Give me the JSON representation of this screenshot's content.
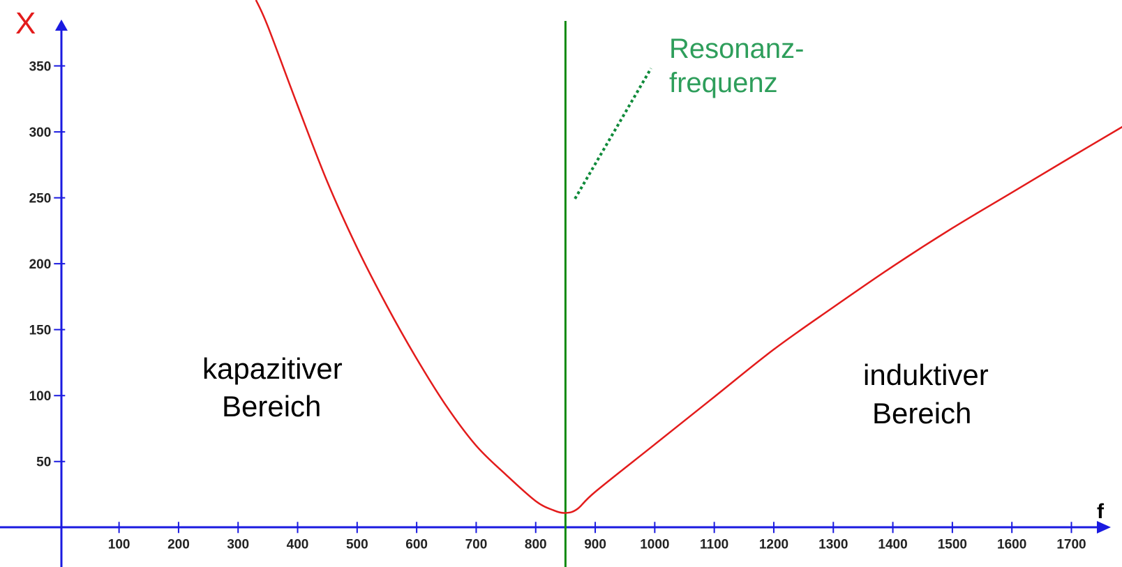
{
  "chart_data": {
    "type": "line",
    "title": "",
    "xlabel": "f",
    "ylabel": "X",
    "xlim": [
      -100,
      1785
    ],
    "ylim": [
      -30,
      400
    ],
    "x_ticks": [
      100,
      200,
      300,
      400,
      500,
      600,
      700,
      800,
      900,
      1000,
      1100,
      1200,
      1300,
      1400,
      1500,
      1600,
      1700
    ],
    "y_ticks": [
      50,
      100,
      150,
      200,
      250,
      300,
      350
    ],
    "grid": false,
    "legend": "none",
    "resonance_frequency": 850,
    "series": [
      {
        "color": "#e31b1b",
        "x": [
          330,
          350,
          400,
          450,
          500,
          550,
          600,
          650,
          700,
          750,
          800,
          830,
          850,
          870,
          900,
          1000,
          1100,
          1200,
          1300,
          1400,
          1500,
          1600,
          1700,
          1790
        ],
        "y": [
          400,
          380,
          320,
          262,
          212,
          168,
          128,
          92,
          62,
          40,
          20,
          13,
          11,
          14,
          27,
          63,
          99,
          135,
          167,
          198,
          227,
          254,
          281,
          305
        ]
      }
    ],
    "annotations": {
      "region_left": [
        "kapazitiver",
        "Bereich"
      ],
      "region_right": [
        "induktiver",
        "Bereich"
      ],
      "resonance_label": [
        "Resonanz-",
        "frequenz"
      ]
    },
    "colors": {
      "axes": "#1a1ae0",
      "curve": "#e31b1b",
      "resonance_line": "#118a11",
      "resonance_text": "#2e9e5b",
      "pointer": "#0f8a3a",
      "ylabel_color": "#e31b1b"
    }
  }
}
